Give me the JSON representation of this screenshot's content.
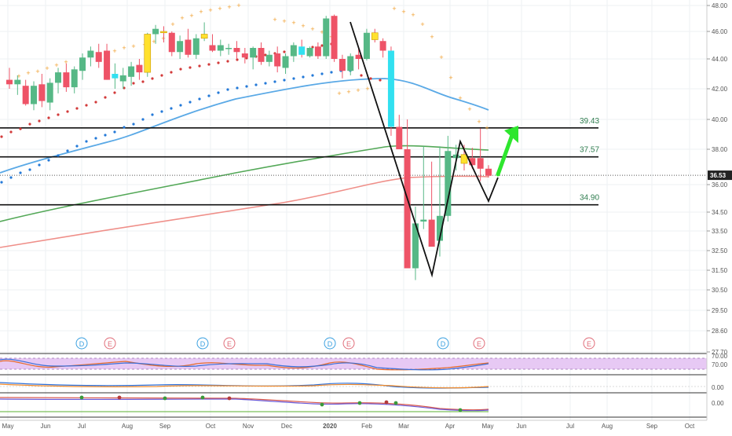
{
  "chart_data": {
    "type": "candlestick",
    "price_axis": {
      "ticks": [
        "48.00",
        "46.00",
        "44.00",
        "42.00",
        "40.00",
        "38.00",
        "36.00",
        "34.50",
        "33.50",
        "32.50",
        "31.50",
        "30.50",
        "29.50",
        "28.60",
        "27.70"
      ],
      "tick_values": [
        48.0,
        46.0,
        44.0,
        42.0,
        40.0,
        38.0,
        36.0,
        34.5,
        33.5,
        32.5,
        31.5,
        30.5,
        29.5,
        28.6,
        27.7
      ],
      "last_price": "36.53"
    },
    "time_axis": {
      "labels": [
        "May",
        "Jun",
        "Jul",
        "Aug",
        "Sep",
        "Oct",
        "Nov",
        "Dec",
        "2020",
        "Feb",
        "Mar",
        "Apr",
        "May",
        "Jun",
        "Jul",
        "Aug",
        "Sep",
        "Oct"
      ],
      "bold_label": "2020"
    },
    "horizontal_levels": [
      {
        "label": "39.43",
        "value": 39.43
      },
      {
        "label": "37.57",
        "value": 37.57
      },
      {
        "label": "34.90",
        "value": 34.9
      }
    ],
    "earnings_markers": [
      {
        "letter": "D"
      },
      {
        "letter": "E"
      },
      {
        "letter": "D"
      },
      {
        "letter": "E"
      },
      {
        "letter": "D"
      },
      {
        "letter": "E"
      },
      {
        "letter": "D"
      },
      {
        "letter": "E"
      },
      {
        "letter": "E"
      }
    ],
    "indicator_axis_labels": [
      "70.00",
      "0.00",
      "0.00",
      "0.00"
    ],
    "candles": [
      {
        "o": 42.6,
        "h": 43.4,
        "l": 42.0,
        "c": 42.3
      },
      {
        "o": 42.3,
        "h": 42.9,
        "l": 41.6,
        "c": 42.6
      },
      {
        "o": 42.2,
        "h": 42.6,
        "l": 40.9,
        "c": 41.0
      },
      {
        "o": 41.0,
        "h": 42.5,
        "l": 40.6,
        "c": 42.2
      },
      {
        "o": 42.3,
        "h": 43.0,
        "l": 40.8,
        "c": 41.2
      },
      {
        "o": 41.1,
        "h": 42.7,
        "l": 40.6,
        "c": 42.4
      },
      {
        "o": 42.4,
        "h": 43.4,
        "l": 41.7,
        "c": 43.1
      },
      {
        "o": 43.1,
        "h": 43.7,
        "l": 41.8,
        "c": 42.1
      },
      {
        "o": 42.1,
        "h": 43.5,
        "l": 41.7,
        "c": 43.3
      },
      {
        "o": 43.2,
        "h": 44.4,
        "l": 42.6,
        "c": 44.1
      },
      {
        "o": 44.1,
        "h": 44.9,
        "l": 43.5,
        "c": 44.6
      },
      {
        "o": 44.5,
        "h": 45.1,
        "l": 43.4,
        "c": 43.8
      },
      {
        "o": 44.6,
        "h": 45.1,
        "l": 42.6,
        "c": 42.6
      },
      {
        "o": 42.7,
        "h": 43.7,
        "l": 42.0,
        "c": 43.0
      },
      {
        "o": 42.5,
        "h": 43.4,
        "l": 42.0,
        "c": 42.9
      },
      {
        "o": 42.8,
        "h": 43.8,
        "l": 42.2,
        "c": 43.5
      },
      {
        "o": 43.6,
        "h": 44.0,
        "l": 42.6,
        "c": 43.1
      },
      {
        "o": 43.1,
        "h": 45.9,
        "l": 42.8,
        "c": 45.8
      },
      {
        "o": 45.8,
        "h": 46.5,
        "l": 45.1,
        "c": 46.2
      },
      {
        "o": 46.0,
        "h": 46.4,
        "l": 45.2,
        "c": 45.9
      },
      {
        "o": 45.9,
        "h": 46.0,
        "l": 44.2,
        "c": 44.5
      },
      {
        "o": 44.5,
        "h": 45.7,
        "l": 44.0,
        "c": 45.3
      },
      {
        "o": 45.4,
        "h": 46.2,
        "l": 44.1,
        "c": 44.3
      },
      {
        "o": 44.3,
        "h": 45.8,
        "l": 44.0,
        "c": 45.5
      },
      {
        "o": 45.5,
        "h": 46.7,
        "l": 45.3,
        "c": 45.8
      },
      {
        "o": 45.0,
        "h": 45.8,
        "l": 44.5,
        "c": 44.6
      },
      {
        "o": 44.6,
        "h": 45.4,
        "l": 44.2,
        "c": 45.0
      },
      {
        "o": 44.8,
        "h": 45.1,
        "l": 44.3,
        "c": 44.8
      },
      {
        "o": 44.8,
        "h": 45.3,
        "l": 44.0,
        "c": 44.5
      },
      {
        "o": 44.4,
        "h": 44.8,
        "l": 43.7,
        "c": 44.1
      },
      {
        "o": 44.1,
        "h": 44.9,
        "l": 43.3,
        "c": 44.8
      },
      {
        "o": 44.8,
        "h": 45.2,
        "l": 43.6,
        "c": 43.8
      },
      {
        "o": 43.8,
        "h": 44.6,
        "l": 43.5,
        "c": 44.3
      },
      {
        "o": 44.4,
        "h": 44.9,
        "l": 43.1,
        "c": 43.5
      },
      {
        "o": 43.4,
        "h": 44.4,
        "l": 43.0,
        "c": 44.2
      },
      {
        "o": 44.2,
        "h": 45.2,
        "l": 43.8,
        "c": 45.0
      },
      {
        "o": 44.9,
        "h": 45.4,
        "l": 44.1,
        "c": 44.3
      },
      {
        "o": 44.2,
        "h": 44.9,
        "l": 44.1,
        "c": 44.8
      },
      {
        "o": 44.9,
        "h": 45.2,
        "l": 44.0,
        "c": 44.2
      },
      {
        "o": 44.2,
        "h": 47.2,
        "l": 44.0,
        "c": 47.0
      },
      {
        "o": 47.2,
        "h": 47.3,
        "l": 43.8,
        "c": 44.0
      },
      {
        "o": 44.0,
        "h": 44.3,
        "l": 42.7,
        "c": 43.2
      },
      {
        "o": 43.2,
        "h": 44.4,
        "l": 42.9,
        "c": 44.2
      },
      {
        "o": 44.3,
        "h": 44.8,
        "l": 43.3,
        "c": 44.0
      },
      {
        "o": 44.0,
        "h": 46.2,
        "l": 43.9,
        "c": 45.9
      },
      {
        "o": 45.9,
        "h": 46.2,
        "l": 45.2,
        "c": 45.4
      },
      {
        "o": 45.3,
        "h": 45.5,
        "l": 44.1,
        "c": 44.6
      },
      {
        "o": 44.6,
        "h": 44.9,
        "l": 38.9,
        "c": 39.5
      },
      {
        "o": 39.5,
        "h": 40.3,
        "l": 38.0,
        "c": 38.0
      },
      {
        "o": 38.0,
        "h": 40.0,
        "l": 31.6,
        "c": 31.6
      },
      {
        "o": 31.6,
        "h": 34.8,
        "l": 31.0,
        "c": 33.9
      },
      {
        "o": 34.0,
        "h": 38.2,
        "l": 33.6,
        "c": 34.1
      },
      {
        "o": 34.1,
        "h": 37.3,
        "l": 32.7,
        "c": 32.7
      },
      {
        "o": 33.0,
        "h": 38.2,
        "l": 32.2,
        "c": 34.3
      },
      {
        "o": 34.3,
        "h": 38.9,
        "l": 34.0,
        "c": 37.9
      },
      {
        "o": 37.5,
        "h": 38.3,
        "l": 36.8,
        "c": 37.7
      },
      {
        "o": 37.7,
        "h": 38.3,
        "l": 36.8,
        "c": 37.2
      },
      {
        "o": 37.5,
        "h": 38.1,
        "l": 36.9,
        "c": 37.1
      },
      {
        "o": 37.5,
        "h": 39.4,
        "l": 36.2,
        "c": 36.9
      },
      {
        "o": 36.9,
        "h": 37.1,
        "l": 36.4,
        "c": 36.5
      }
    ]
  }
}
